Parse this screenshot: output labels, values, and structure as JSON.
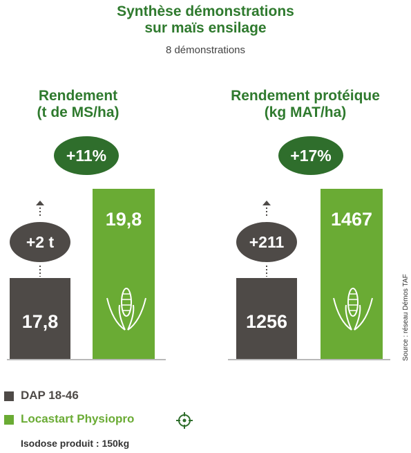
{
  "header": {
    "title_line1": "Synthèse démonstrations",
    "title_line2": "sur maïs ensilage",
    "subtitle": "8 démonstrations"
  },
  "colors": {
    "dark": "#4e4a47",
    "green": "#6aab34",
    "title_green": "#2f7a2e",
    "badge_green": "#2f6e2c"
  },
  "chart_data": [
    {
      "type": "bar",
      "title_line1": "Rendement",
      "title_line2": "(t de MS/ha)",
      "categories": [
        "DAP 18-46",
        "Locastart Physiopro"
      ],
      "values": [
        17.8,
        19.8
      ],
      "value_labels": [
        "17,8",
        "19,8"
      ],
      "difference_label": "+2 t",
      "gain_label": "+11%"
    },
    {
      "type": "bar",
      "title_line1": "Rendement protéique",
      "title_line2": "(kg MAT/ha)",
      "categories": [
        "DAP 18-46",
        "Locastart Physiopro"
      ],
      "values": [
        1256,
        1467
      ],
      "value_labels": [
        "1256",
        "1467"
      ],
      "difference_label": "+211",
      "gain_label": "+17%"
    }
  ],
  "legend": {
    "items": [
      {
        "label": "DAP 18-46",
        "color": "#4e4a47"
      },
      {
        "label": "Locastart Physiopro",
        "color": "#6aab34",
        "icon": "target-icon"
      }
    ],
    "note": "Isodose produit : 150kg"
  },
  "source": "Source : réseau Démos TAF"
}
